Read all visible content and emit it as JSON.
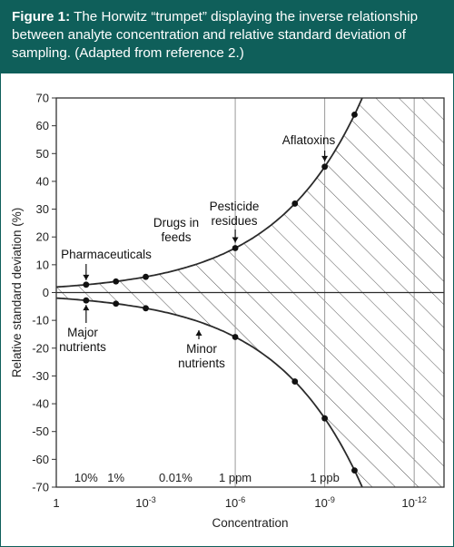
{
  "caption": {
    "label": "Figure 1:",
    "text": " The Horwitz “trumpet” displaying the inverse relationship between analyte concentration and relative standard deviation of sampling. (Adapted from reference 2.)"
  },
  "colors": {
    "header_bg": "#0f5f5a",
    "header_text": "#ffffff",
    "curve": "#2b2b2b",
    "hatch": "#555555",
    "grid": "#999999"
  },
  "chart_data": {
    "type": "line",
    "xlabel": "Concentration",
    "ylabel": "Relative standard deviation (%)",
    "x_scale": "log",
    "x_range_exponent": [
      0,
      13
    ],
    "ylim": [
      -70,
      70
    ],
    "yticks": [
      70,
      60,
      50,
      40,
      30,
      20,
      10,
      0,
      -10,
      -20,
      -30,
      -40,
      -50,
      -60,
      -70
    ],
    "xticks": [
      {
        "exp": 0,
        "base": "1",
        "sup": ""
      },
      {
        "exp": 3,
        "base": "10",
        "sup": "-3"
      },
      {
        "exp": 6,
        "base": "10",
        "sup": "-6"
      },
      {
        "exp": 9,
        "base": "10",
        "sup": "-9"
      },
      {
        "exp": 12,
        "base": "10",
        "sup": "-12"
      }
    ],
    "vertical_lines_exp": [
      6,
      9,
      12
    ],
    "concentration_labels": [
      {
        "text": "10%",
        "exp": 1
      },
      {
        "text": "1%",
        "exp": 2
      },
      {
        "text": "0.01%",
        "exp": 4
      },
      {
        "text": "1 ppm",
        "exp": 6
      },
      {
        "text": "1 ppb",
        "exp": 9
      }
    ],
    "points_exp": [
      1,
      2,
      3,
      6,
      8,
      9,
      10
    ],
    "annotations": [
      {
        "lines": [
          "Pharmaceuticals"
        ]
      },
      {
        "lines": [
          "Major",
          "nutrients"
        ]
      },
      {
        "lines": [
          "Drugs in",
          "feeds"
        ]
      },
      {
        "lines": [
          "Minor",
          "nutrients"
        ]
      },
      {
        "lines": [
          "Pesticide",
          "residues"
        ]
      },
      {
        "lines": [
          "Aflatoxins"
        ]
      }
    ]
  }
}
